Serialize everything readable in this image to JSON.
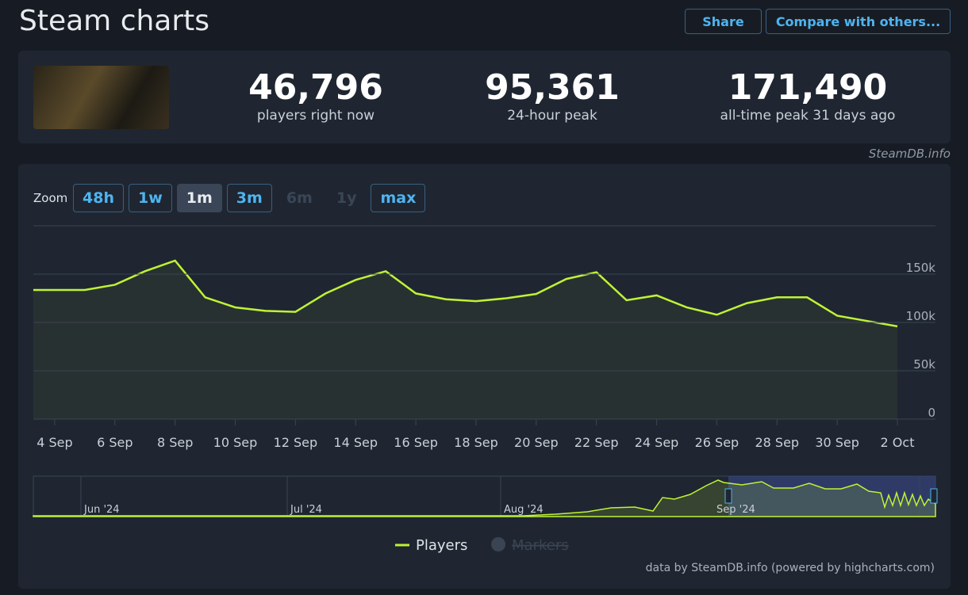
{
  "header": {
    "title": "Steam charts",
    "share": "Share",
    "compare": "Compare with others..."
  },
  "stats": [
    {
      "value": "46,796",
      "label": "players right now"
    },
    {
      "value": "95,361",
      "label": "24-hour peak"
    },
    {
      "value": "171,490",
      "label": "all-time peak 31 days ago"
    }
  ],
  "watermark": "SteamDB.info",
  "zoom": {
    "label": "Zoom",
    "buttons": [
      "48h",
      "1w",
      "1m",
      "3m",
      "6m",
      "1y",
      "max"
    ],
    "active": "1m",
    "disabled": [
      "6m",
      "1y"
    ]
  },
  "chart_data": {
    "type": "line",
    "categories": [
      null,
      "4 Sep",
      null,
      "6 Sep",
      null,
      "8 Sep",
      null,
      "10 Sep",
      null,
      "12 Sep",
      null,
      "14 Sep",
      null,
      "16 Sep",
      null,
      "18 Sep",
      null,
      "20 Sep",
      null,
      "22 Sep",
      null,
      "24 Sep",
      null,
      "26 Sep",
      null,
      "28 Sep",
      null,
      "30 Sep",
      null,
      "2 Oct"
    ],
    "series": [
      {
        "name": "Players",
        "color": "#bef335",
        "values": [
          133600,
          133600,
          133600,
          139000,
          153000,
          164000,
          126000,
          115600,
          112000,
          111000,
          130000,
          144000,
          153000,
          130000,
          124000,
          122000,
          125000,
          129500,
          145000,
          152000,
          123000,
          128000,
          115600,
          108000,
          120000,
          126000,
          126000,
          107000,
          101500,
          96000
        ]
      }
    ],
    "legend_extra": "Markers",
    "ylim": [
      0,
      200000
    ],
    "yticks": [
      0,
      {
        "value": 50000,
        "label": "50k"
      },
      {
        "value": 100000,
        "label": "100k"
      },
      {
        "value": 150000,
        "label": "150k"
      }
    ],
    "grid": true
  },
  "navigator": {
    "labels": [
      "Jun '24",
      "Jul '24",
      "Aug '24",
      "Sep '24"
    ]
  },
  "credits": "data by SteamDB.info (powered by highcharts.com)"
}
